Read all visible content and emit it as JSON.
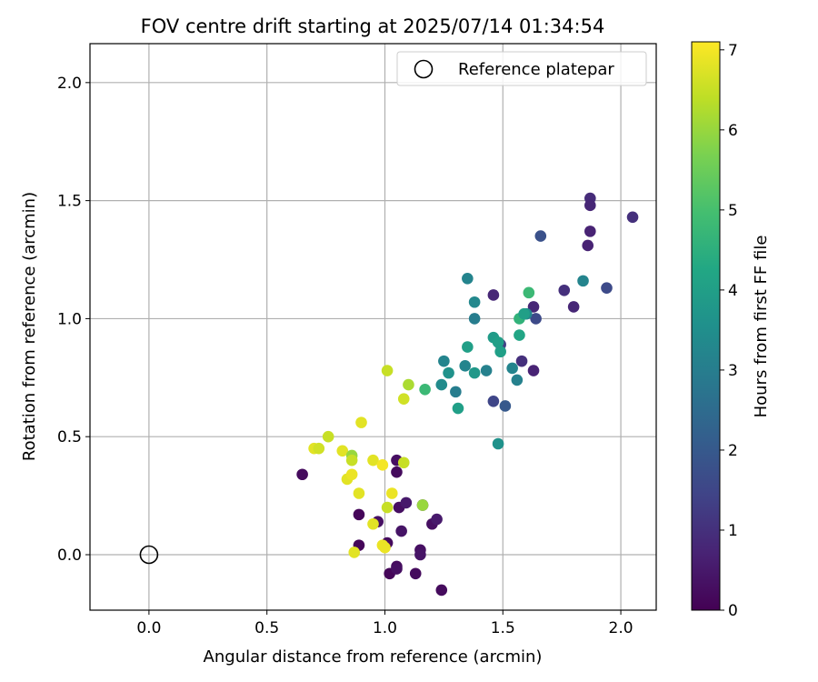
{
  "chart_data": {
    "type": "scatter",
    "title": "FOV centre drift starting at 2025/07/14 01:34:54",
    "xlabel": "Angular distance from reference (arcmin)",
    "ylabel": "Rotation from reference (arcmin)",
    "xlim": [
      -0.25,
      2.15
    ],
    "ylim": [
      -0.235,
      2.165
    ],
    "xticks": [
      0.0,
      0.5,
      1.0,
      1.5,
      2.0
    ],
    "xtick_labels": [
      "0.0",
      "0.5",
      "1.0",
      "1.5",
      "2.0"
    ],
    "yticks": [
      0.0,
      0.5,
      1.0,
      1.5,
      2.0
    ],
    "ytick_labels": [
      "0.0",
      "0.5",
      "1.0",
      "1.5",
      "2.0"
    ],
    "grid": true,
    "legend": {
      "position": "top-right",
      "label": "Reference platepar",
      "marker": "open-circle"
    },
    "reference_point": {
      "x": 0.0,
      "y": 0.0
    },
    "colorbar": {
      "label": "Hours from first FF file",
      "range": [
        0,
        7.1
      ],
      "ticks": [
        0,
        1,
        2,
        3,
        4,
        5,
        6,
        7
      ],
      "tick_labels": [
        "0",
        "1",
        "2",
        "3",
        "4",
        "5",
        "6",
        "7"
      ],
      "colormap": "viridis"
    },
    "points": [
      {
        "x": 0.65,
        "y": 0.34,
        "t": 0.2
      },
      {
        "x": 0.89,
        "y": 0.17,
        "t": 0.1
      },
      {
        "x": 0.89,
        "y": 0.04,
        "t": 0.1
      },
      {
        "x": 0.97,
        "y": 0.14,
        "t": 0.3
      },
      {
        "x": 1.01,
        "y": 0.05,
        "t": 0.2
      },
      {
        "x": 1.02,
        "y": -0.08,
        "t": 0.1
      },
      {
        "x": 1.05,
        "y": -0.05,
        "t": 0.2
      },
      {
        "x": 1.05,
        "y": -0.06,
        "t": 0.3
      },
      {
        "x": 1.05,
        "y": 0.4,
        "t": 0.3
      },
      {
        "x": 1.05,
        "y": 0.35,
        "t": 0.2
      },
      {
        "x": 1.06,
        "y": 0.2,
        "t": 0.3
      },
      {
        "x": 1.07,
        "y": 0.1,
        "t": 0.4
      },
      {
        "x": 1.09,
        "y": 0.22,
        "t": 0.5
      },
      {
        "x": 1.13,
        "y": -0.08,
        "t": 0.2
      },
      {
        "x": 1.15,
        "y": 0.02,
        "t": 0.3
      },
      {
        "x": 1.15,
        "y": 0.0,
        "t": 0.4
      },
      {
        "x": 1.16,
        "y": 0.21,
        "t": 0.4
      },
      {
        "x": 1.2,
        "y": 0.13,
        "t": 0.3
      },
      {
        "x": 1.22,
        "y": 0.15,
        "t": 0.5
      },
      {
        "x": 1.24,
        "y": -0.15,
        "t": 0.2
      },
      {
        "x": 1.46,
        "y": 1.1,
        "t": 0.8
      },
      {
        "x": 1.46,
        "y": 0.65,
        "t": 1.5
      },
      {
        "x": 1.49,
        "y": 0.89,
        "t": 1.3
      },
      {
        "x": 1.51,
        "y": 0.63,
        "t": 2.0
      },
      {
        "x": 1.58,
        "y": 0.82,
        "t": 1.0
      },
      {
        "x": 1.63,
        "y": 1.05,
        "t": 0.8
      },
      {
        "x": 1.63,
        "y": 0.78,
        "t": 0.7
      },
      {
        "x": 1.64,
        "y": 1.0,
        "t": 1.6
      },
      {
        "x": 1.66,
        "y": 1.35,
        "t": 1.8
      },
      {
        "x": 1.76,
        "y": 1.12,
        "t": 1.0
      },
      {
        "x": 1.8,
        "y": 1.05,
        "t": 0.8
      },
      {
        "x": 1.86,
        "y": 1.31,
        "t": 0.7
      },
      {
        "x": 1.87,
        "y": 1.51,
        "t": 0.9
      },
      {
        "x": 1.87,
        "y": 1.48,
        "t": 0.8
      },
      {
        "x": 1.87,
        "y": 1.37,
        "t": 0.7
      },
      {
        "x": 1.94,
        "y": 1.13,
        "t": 1.6
      },
      {
        "x": 2.05,
        "y": 1.43,
        "t": 1.0
      },
      {
        "x": 1.84,
        "y": 1.16,
        "t": 3.2
      },
      {
        "x": 1.6,
        "y": 1.02,
        "t": 3.3
      },
      {
        "x": 1.35,
        "y": 1.17,
        "t": 3.2
      },
      {
        "x": 1.38,
        "y": 1.07,
        "t": 3.3
      },
      {
        "x": 1.38,
        "y": 1.0,
        "t": 3.0
      },
      {
        "x": 1.25,
        "y": 0.82,
        "t": 3.2
      },
      {
        "x": 1.24,
        "y": 0.72,
        "t": 3.4
      },
      {
        "x": 1.27,
        "y": 0.77,
        "t": 3.6
      },
      {
        "x": 1.3,
        "y": 0.69,
        "t": 3.0
      },
      {
        "x": 1.31,
        "y": 0.62,
        "t": 4.0
      },
      {
        "x": 1.34,
        "y": 0.8,
        "t": 3.2
      },
      {
        "x": 1.35,
        "y": 0.88,
        "t": 4.0
      },
      {
        "x": 1.38,
        "y": 0.77,
        "t": 3.8
      },
      {
        "x": 1.43,
        "y": 0.78,
        "t": 3.1
      },
      {
        "x": 1.46,
        "y": 0.92,
        "t": 3.9
      },
      {
        "x": 1.48,
        "y": 0.9,
        "t": 4.0
      },
      {
        "x": 1.48,
        "y": 0.47,
        "t": 3.6
      },
      {
        "x": 1.49,
        "y": 0.86,
        "t": 4.0
      },
      {
        "x": 1.54,
        "y": 0.79,
        "t": 3.2
      },
      {
        "x": 1.56,
        "y": 0.74,
        "t": 3.1
      },
      {
        "x": 1.57,
        "y": 0.93,
        "t": 4.2
      },
      {
        "x": 1.57,
        "y": 1.0,
        "t": 4.6
      },
      {
        "x": 1.59,
        "y": 1.02,
        "t": 4.0
      },
      {
        "x": 1.61,
        "y": 1.11,
        "t": 4.8
      },
      {
        "x": 1.17,
        "y": 0.7,
        "t": 4.8
      },
      {
        "x": 1.1,
        "y": 0.72,
        "t": 6.2
      },
      {
        "x": 1.08,
        "y": 0.66,
        "t": 6.6
      },
      {
        "x": 1.01,
        "y": 0.78,
        "t": 6.5
      },
      {
        "x": 0.9,
        "y": 0.56,
        "t": 6.8
      },
      {
        "x": 0.76,
        "y": 0.5,
        "t": 6.5
      },
      {
        "x": 0.7,
        "y": 0.45,
        "t": 6.8
      },
      {
        "x": 0.72,
        "y": 0.45,
        "t": 6.6
      },
      {
        "x": 0.82,
        "y": 0.44,
        "t": 6.8
      },
      {
        "x": 0.86,
        "y": 0.42,
        "t": 6.0
      },
      {
        "x": 0.86,
        "y": 0.4,
        "t": 6.5
      },
      {
        "x": 0.95,
        "y": 0.4,
        "t": 6.8
      },
      {
        "x": 0.99,
        "y": 0.38,
        "t": 7.0
      },
      {
        "x": 1.08,
        "y": 0.39,
        "t": 6.5
      },
      {
        "x": 0.84,
        "y": 0.32,
        "t": 6.8
      },
      {
        "x": 0.86,
        "y": 0.34,
        "t": 6.9
      },
      {
        "x": 0.89,
        "y": 0.26,
        "t": 6.8
      },
      {
        "x": 1.03,
        "y": 0.26,
        "t": 6.9
      },
      {
        "x": 1.01,
        "y": 0.2,
        "t": 6.5
      },
      {
        "x": 1.16,
        "y": 0.21,
        "t": 6.0
      },
      {
        "x": 0.95,
        "y": 0.13,
        "t": 6.8
      },
      {
        "x": 0.99,
        "y": 0.04,
        "t": 6.9
      },
      {
        "x": 1.0,
        "y": 0.03,
        "t": 6.9
      },
      {
        "x": 0.87,
        "y": 0.01,
        "t": 6.8
      }
    ]
  }
}
